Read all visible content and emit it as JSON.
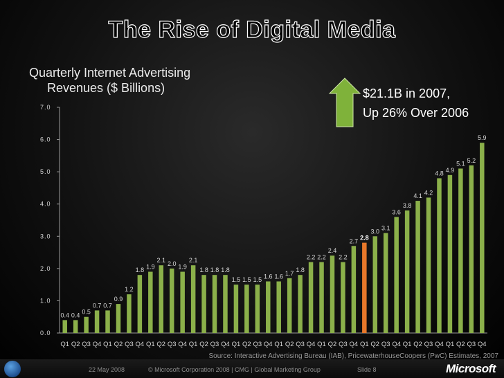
{
  "slide": {
    "title": "The Rise of Digital Media",
    "callout_line1": "$21.1B in 2007,",
    "callout_line2": "Up 26% Over 2006",
    "source": "Source: Interactive Advertising Bureau (IAB), PricewaterhouseCoopers (PwC) Estimates, 2007"
  },
  "footer": {
    "date": "22 May 2008",
    "copyright": "© Microsoft Corporation 2008 | CMG | Global Marketing Group",
    "slide_no": "Slide 8",
    "logo_text": "Microsoft"
  },
  "colors": {
    "bar": "#8bb04a",
    "highlight": "#e8782a",
    "arrow": "#7fb23a",
    "axis": "#9a9a9a"
  },
  "chart_data": {
    "type": "bar",
    "title_line1": "Quarterly Internet Advertising",
    "title_line2": "Revenues ($ Billions)",
    "ylim": [
      0,
      7
    ],
    "yticks": [
      "0.0",
      "1.0",
      "2.0",
      "3.0",
      "4.0",
      "5.0",
      "6.0",
      "7.0"
    ],
    "grid": false,
    "highlight_index": 28,
    "categories": [
      "Q1",
      "Q2",
      "Q3",
      "Q4",
      "Q1",
      "Q2",
      "Q3",
      "Q4",
      "Q1",
      "Q2",
      "Q3",
      "Q4",
      "Q1",
      "Q2",
      "Q3",
      "Q4",
      "Q1",
      "Q2",
      "Q3",
      "Q4",
      "Q1",
      "Q2",
      "Q3",
      "Q4",
      "Q1",
      "Q2",
      "Q3",
      "Q4",
      "Q1",
      "Q2",
      "Q3",
      "Q4",
      "Q1",
      "Q2",
      "Q3",
      "Q4",
      "Q1",
      "Q2",
      "Q3",
      "Q4"
    ],
    "values": [
      0.4,
      0.4,
      0.5,
      0.7,
      0.7,
      0.9,
      1.2,
      1.8,
      1.9,
      2.1,
      2.0,
      1.9,
      2.1,
      1.8,
      1.8,
      1.8,
      1.5,
      1.5,
      1.5,
      1.6,
      1.6,
      1.7,
      1.8,
      2.2,
      2.2,
      2.4,
      2.2,
      2.7,
      2.8,
      3.0,
      3.1,
      3.6,
      3.8,
      4.1,
      4.2,
      4.8,
      4.9,
      5.1,
      5.2,
      5.9
    ],
    "labels": [
      "0.4",
      "0.4",
      "0.5",
      "0.7",
      "0.7",
      "0.9",
      "1.2",
      "1.8",
      "1.9",
      "2.1",
      "2.0",
      "1.9",
      "2.1",
      "1.8",
      "1.8",
      "1.8",
      "1.5",
      "1.5",
      "1.5",
      "1.6",
      "1.6",
      "1.7",
      "1.8",
      "2.2",
      "2.2",
      "2.4",
      "2.2",
      "2.7",
      "2.8",
      "3.0",
      "3.1",
      "3.6",
      "3.8",
      "4.1",
      "4.2",
      "4.8",
      "4.9",
      "5.1",
      "5.2",
      "5.9"
    ]
  }
}
